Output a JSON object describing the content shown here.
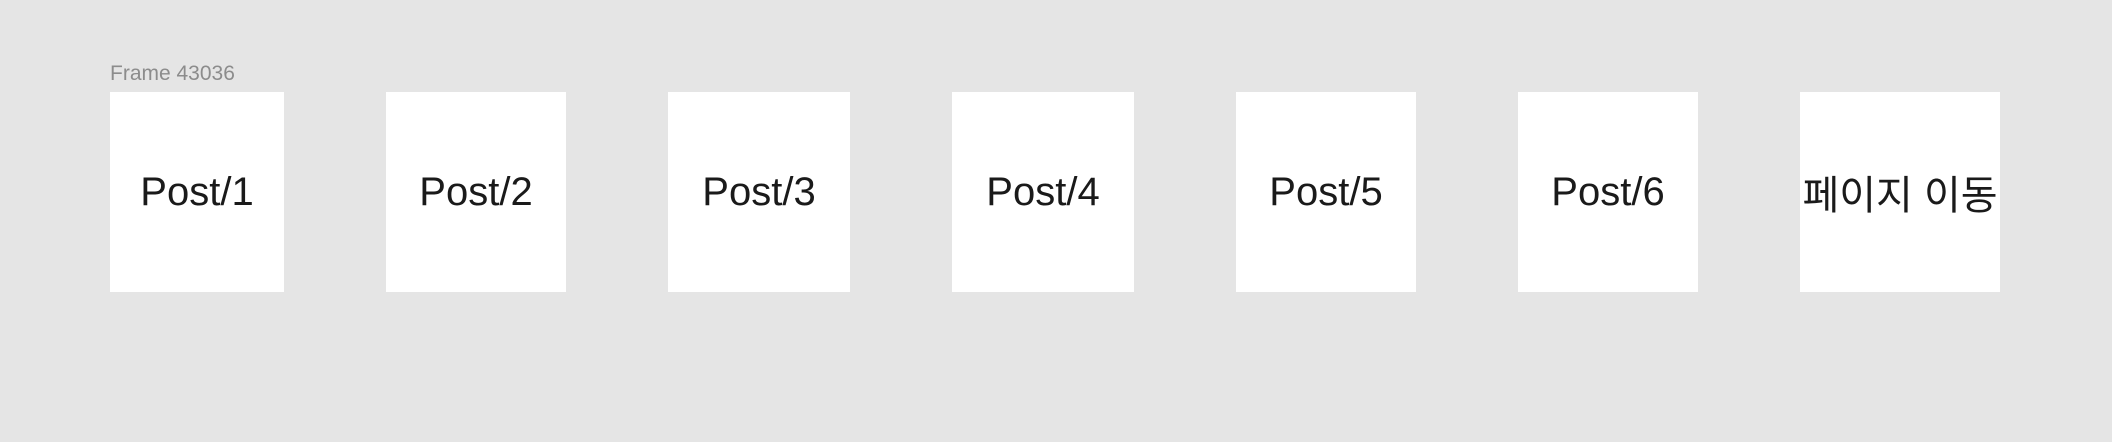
{
  "frame": {
    "label": "Frame 43036"
  },
  "cards": [
    {
      "label": "Post/1"
    },
    {
      "label": "Post/2"
    },
    {
      "label": "Post/3"
    },
    {
      "label": "Post/4"
    },
    {
      "label": "Post/5"
    },
    {
      "label": "Post/6"
    },
    {
      "label": "페이지 이동"
    }
  ],
  "colors": {
    "canvas_background": "#e5e5e5",
    "card_background": "#ffffff",
    "frame_label": "#8c8c8c",
    "card_text": "#1a1a1a"
  }
}
